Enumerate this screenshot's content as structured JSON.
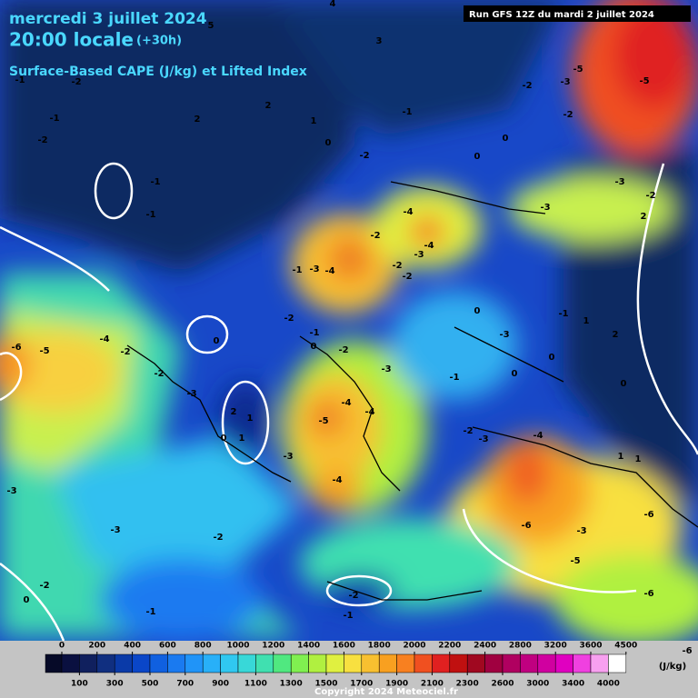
{
  "header": {
    "date": "mercredi 3 juillet 2024",
    "time": "20:00 locale",
    "lead": "(+30h)",
    "product": "Surface-Based CAPE (J/kg) et Lifted Index",
    "run": "Run GFS 12Z du mardi 2 juillet 2024"
  },
  "map": {
    "contour_labels": [
      -1,
      -2,
      -1,
      -2,
      5,
      4,
      3,
      2,
      2,
      1,
      0,
      -1,
      -2,
      0,
      0,
      -2,
      -5,
      -3,
      -2,
      -5,
      -3,
      -2,
      -1,
      -1,
      -4,
      -2,
      -4,
      -3,
      2,
      -1,
      -3,
      -4,
      -2,
      -2,
      -3,
      -2,
      -1,
      0,
      -2,
      0,
      -3,
      -1,
      1,
      2,
      0,
      -6,
      -5,
      -4,
      -2,
      -2,
      -3,
      -1,
      0,
      0,
      0,
      -3,
      -4,
      -4,
      -5,
      2,
      1,
      0,
      1,
      -3,
      -4,
      -3,
      -4,
      -2,
      -6,
      -3,
      -6,
      -5,
      1,
      1,
      -3,
      -3,
      -2,
      -2,
      0,
      -1,
      -2,
      -1,
      -6,
      -6
    ]
  },
  "legend": {
    "unit": "(J/kg)",
    "top_levels": [
      0,
      200,
      400,
      600,
      800,
      1000,
      1200,
      1400,
      1600,
      1800,
      2000,
      2200,
      2400,
      2800,
      3200,
      3600,
      4500
    ],
    "bottom_levels": [
      100,
      300,
      500,
      700,
      900,
      1100,
      1300,
      1500,
      1700,
      1900,
      2100,
      2300,
      2600,
      3000,
      3400,
      4000
    ],
    "colors": [
      "#0a1040",
      "#10205e",
      "#102f80",
      "#0a3aa8",
      "#0a46c8",
      "#1060e0",
      "#1a7af0",
      "#2094f8",
      "#28b0f8",
      "#30c8f0",
      "#38d8d8",
      "#40e0b0",
      "#50e880",
      "#80f050",
      "#b0f040",
      "#e0f040",
      "#f8e040",
      "#f8c030",
      "#f8a020",
      "#f88020",
      "#f05020",
      "#e02020",
      "#c01010",
      "#a00820",
      "#a00040",
      "#b00060",
      "#c00080",
      "#d000a0",
      "#e000c0",
      "#f040e0",
      "#f8a0f0",
      "#ffffff"
    ]
  },
  "footer": {
    "copyright": "Copyright 2024 Meteociel.fr"
  }
}
